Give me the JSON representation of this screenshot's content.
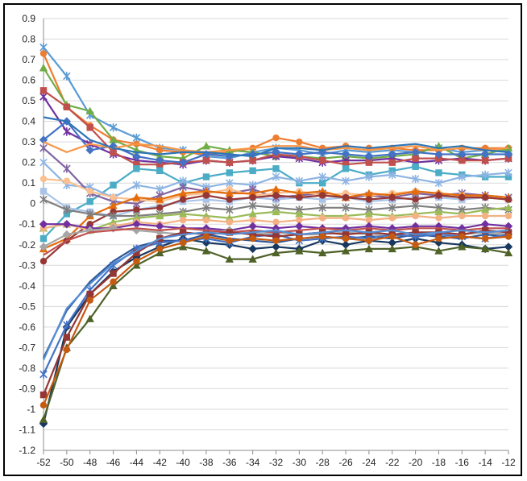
{
  "chart_data": {
    "type": "line",
    "title": "",
    "xlabel": "",
    "ylabel": "",
    "grid": true,
    "legend": "none",
    "xlim": [
      -52,
      -12
    ],
    "ylim": [
      -1.2,
      0.9
    ],
    "x": [
      -52,
      -50,
      -48,
      -46,
      -44,
      -42,
      -40,
      -38,
      -36,
      -34,
      -32,
      -30,
      -28,
      -26,
      -24,
      -22,
      -20,
      -18,
      -16,
      -14,
      -12
    ],
    "x_tick_labels": [
      "-52",
      "-50",
      "-48",
      "-46",
      "-44",
      "-42",
      "-40",
      "-38",
      "-36",
      "-34",
      "-32",
      "-30",
      "-28",
      "-26",
      "-24",
      "-22",
      "-20",
      "-18",
      "-16",
      "-14",
      "-12"
    ],
    "y_ticks": [
      0.9,
      0.8,
      0.7,
      0.6,
      0.5,
      0.4,
      0.3,
      0.2,
      0.1,
      0,
      -0.1,
      -0.2,
      -0.3,
      -0.4,
      -0.5,
      -0.6,
      -0.7,
      -0.8,
      -0.9,
      -1,
      -1.1,
      -1.2
    ],
    "y_tick_labels": [
      "0.9",
      "0.8",
      "0.7",
      "0.6",
      "0.5",
      "0.4",
      "0.3",
      "0.2",
      "0.1",
      "0",
      "-0.1",
      "-0.2",
      "-0.3",
      "-0.4",
      "-0.5",
      "-0.6",
      "-0.7",
      "-0.8",
      "-0.9",
      "-1",
      "-1.1",
      "-1.2"
    ],
    "series": [
      {
        "color": "#5b9bd5",
        "marker": "x",
        "values": [
          0.76,
          0.62,
          0.43,
          0.37,
          0.32,
          0.27,
          0.26,
          0.23,
          0.22,
          0.25,
          0.27,
          0.26,
          0.24,
          0.26,
          0.25,
          0.26,
          0.25,
          0.27,
          0.25,
          0.26,
          0.26
        ]
      },
      {
        "color": "#ed7d31",
        "marker": "circle",
        "values": [
          0.73,
          0.47,
          0.38,
          0.31,
          0.29,
          0.26,
          0.25,
          0.24,
          0.25,
          0.27,
          0.32,
          0.3,
          0.27,
          0.28,
          0.27,
          0.27,
          0.26,
          0.26,
          0.27,
          0.27,
          0.27
        ]
      },
      {
        "color": "#70ad47",
        "marker": "triangle",
        "values": [
          0.66,
          0.48,
          0.45,
          0.31,
          0.26,
          0.23,
          0.22,
          0.28,
          0.26,
          0.25,
          0.23,
          0.23,
          0.22,
          0.23,
          0.22,
          0.23,
          0.24,
          0.28,
          0.22,
          0.24,
          0.27
        ]
      },
      {
        "color": "#7030a0",
        "marker": "x",
        "values": [
          0.52,
          0.35,
          0.29,
          0.24,
          0.21,
          0.2,
          0.19,
          0.21,
          0.2,
          0.21,
          0.23,
          0.22,
          0.2,
          0.21,
          0.21,
          0.22,
          0.2,
          0.21,
          0.22,
          0.21,
          0.22
        ]
      },
      {
        "color": "#c0504d",
        "marker": "square",
        "values": [
          0.55,
          0.47,
          0.37,
          0.25,
          0.19,
          0.19,
          0.2,
          0.21,
          0.2,
          0.21,
          0.24,
          0.23,
          0.21,
          0.19,
          0.2,
          0.2,
          0.22,
          0.22,
          0.21,
          0.21,
          0.22
        ]
      },
      {
        "color": "#4472c4",
        "marker": "diamond",
        "values": [
          0.31,
          0.4,
          0.26,
          0.28,
          0.23,
          0.21,
          0.2,
          0.24,
          0.23,
          0.24,
          0.25,
          0.24,
          0.25,
          0.24,
          0.23,
          0.24,
          0.25,
          0.24,
          0.24,
          0.24,
          0.24
        ]
      },
      {
        "color": "#f79646",
        "marker": "none",
        "values": [
          0.3,
          0.25,
          0.29,
          0.27,
          0.29,
          0.28,
          0.26,
          0.25,
          0.26,
          0.27,
          0.28,
          0.28,
          0.26,
          0.27,
          0.26,
          0.27,
          0.28,
          0.26,
          0.27,
          0.26,
          0.27
        ]
      },
      {
        "color": "#2e75b6",
        "marker": "none",
        "values": [
          0.42,
          0.4,
          0.31,
          0.27,
          0.25,
          0.24,
          0.25,
          0.25,
          0.24,
          0.23,
          0.27,
          0.27,
          0.26,
          0.28,
          0.27,
          0.28,
          0.29,
          0.27,
          0.28,
          0.26,
          0.25
        ]
      },
      {
        "color": "#4bacc6",
        "marker": "square",
        "values": [
          -0.17,
          -0.05,
          0.01,
          0.09,
          0.17,
          0.16,
          0.1,
          0.13,
          0.15,
          0.16,
          0.17,
          0.1,
          0.1,
          0.17,
          0.14,
          0.16,
          0.18,
          0.15,
          0.14,
          0.13,
          0.13
        ]
      },
      {
        "color": "#8eb4e3",
        "marker": "x",
        "values": [
          0.2,
          0.09,
          0.08,
          0.03,
          0.09,
          0.07,
          0.11,
          0.08,
          0.1,
          0.09,
          0.13,
          0.11,
          0.13,
          0.11,
          0.13,
          0.14,
          0.12,
          0.1,
          0.13,
          0.14,
          0.15
        ]
      },
      {
        "color": "#a9c4e8",
        "marker": "square",
        "values": [
          0.06,
          -0.02,
          -0.04,
          -0.06,
          -0.03,
          -0.01,
          0.01,
          0.02,
          0.01,
          0.03,
          0.02,
          0.03,
          0.02,
          0.03,
          0.01,
          0.02,
          0.03,
          0.03,
          0.02,
          0.03,
          0.02
        ]
      },
      {
        "color": "#8064a2",
        "marker": "x",
        "values": [
          0.27,
          0.17,
          0.05,
          0.01,
          0.0,
          0.04,
          0.08,
          0.06,
          0.05,
          0.07,
          0.03,
          0.04,
          0.05,
          0.03,
          0.04,
          0.03,
          0.05,
          0.04,
          0.05,
          0.04,
          0.03
        ]
      },
      {
        "color": "#fac090",
        "marker": "circle",
        "values": [
          0.12,
          0.11,
          0.06,
          0.03,
          0.02,
          0.01,
          0.04,
          0.05,
          0.07,
          0.04,
          0.05,
          0.06,
          0.04,
          0.05,
          0.04,
          0.05,
          0.06,
          0.05,
          0.04,
          0.03,
          0.02
        ]
      },
      {
        "color": "#e46c0a",
        "marker": "triangle",
        "values": [
          -0.22,
          -0.17,
          -0.06,
          -0.01,
          0.03,
          0.02,
          0.05,
          0.06,
          0.05,
          0.05,
          0.07,
          0.05,
          0.06,
          0.03,
          0.05,
          0.04,
          0.06,
          0.05,
          0.04,
          0.04,
          0.03
        ]
      },
      {
        "color": "#953735",
        "marker": "circle",
        "values": [
          -0.28,
          -0.18,
          -0.1,
          -0.04,
          -0.03,
          -0.02,
          0.02,
          0.04,
          0.02,
          0.03,
          0.04,
          0.03,
          0.04,
          0.03,
          0.02,
          0.03,
          0.02,
          0.04,
          0.03,
          0.03,
          0.02
        ]
      },
      {
        "color": "#7f7f7f",
        "marker": "x",
        "values": [
          0.02,
          -0.03,
          -0.05,
          -0.06,
          -0.06,
          -0.05,
          -0.04,
          -0.02,
          -0.03,
          -0.01,
          -0.02,
          -0.03,
          -0.02,
          -0.02,
          -0.03,
          -0.02,
          -0.01,
          -0.02,
          -0.03,
          -0.02,
          -0.03
        ]
      },
      {
        "color": "#9bbb59",
        "marker": "triangle",
        "values": [
          -0.12,
          -0.1,
          -0.13,
          -0.09,
          -0.07,
          -0.06,
          -0.05,
          -0.06,
          -0.07,
          -0.05,
          -0.04,
          -0.05,
          -0.06,
          -0.06,
          -0.05,
          -0.06,
          -0.05,
          -0.04,
          -0.05,
          -0.03,
          -0.02
        ]
      },
      {
        "color": "#f4b183",
        "marker": "circle",
        "values": [
          -0.12,
          -0.1,
          -0.13,
          -0.11,
          -0.09,
          -0.1,
          -0.08,
          -0.08,
          -0.09,
          -0.08,
          -0.09,
          -0.08,
          -0.07,
          -0.07,
          -0.08,
          -0.07,
          -0.06,
          -0.07,
          -0.06,
          -0.06,
          -0.06
        ]
      },
      {
        "color": "#7030a0",
        "marker": "diamond",
        "values": [
          -0.1,
          -0.1,
          -0.12,
          -0.12,
          -0.1,
          -0.11,
          -0.12,
          -0.12,
          -0.13,
          -0.11,
          -0.12,
          -0.11,
          -0.12,
          -0.12,
          -0.11,
          -0.12,
          -0.11,
          -0.11,
          -0.12,
          -0.1,
          -0.11
        ]
      },
      {
        "color": "#a6a6a6",
        "marker": "diamond",
        "values": [
          -0.21,
          -0.15,
          -0.13,
          -0.12,
          -0.13,
          -0.14,
          -0.15,
          -0.14,
          -0.13,
          -0.15,
          -0.14,
          -0.15,
          -0.15,
          -0.14,
          -0.15,
          -0.16,
          -0.15,
          -0.14,
          -0.15,
          -0.14,
          -0.15
        ]
      },
      {
        "color": "#c0504d",
        "marker": "none",
        "values": [
          -0.25,
          -0.18,
          -0.14,
          -0.13,
          -0.12,
          -0.13,
          -0.12,
          -0.13,
          -0.14,
          -0.13,
          -0.14,
          -0.13,
          -0.12,
          -0.13,
          -0.12,
          -0.13,
          -0.12,
          -0.12,
          -0.13,
          -0.12,
          -0.12
        ]
      },
      {
        "color": "#17375e",
        "marker": "diamond",
        "values": [
          -1.07,
          -0.6,
          -0.44,
          -0.33,
          -0.26,
          -0.21,
          -0.17,
          -0.19,
          -0.2,
          -0.22,
          -0.21,
          -0.22,
          -0.18,
          -0.2,
          -0.18,
          -0.19,
          -0.17,
          -0.19,
          -0.2,
          -0.22,
          -0.21
        ]
      },
      {
        "color": "#4f6228",
        "marker": "triangle",
        "values": [
          -1.05,
          -0.7,
          -0.56,
          -0.4,
          -0.3,
          -0.24,
          -0.21,
          -0.23,
          -0.27,
          -0.27,
          -0.24,
          -0.23,
          -0.24,
          -0.23,
          -0.22,
          -0.22,
          -0.21,
          -0.23,
          -0.21,
          -0.22,
          -0.24
        ]
      },
      {
        "color": "#2f5597",
        "marker": "none",
        "values": [
          -0.75,
          -0.52,
          -0.38,
          -0.28,
          -0.21,
          -0.18,
          -0.18,
          -0.15,
          -0.17,
          -0.18,
          -0.19,
          -0.17,
          -0.16,
          -0.17,
          -0.16,
          -0.17,
          -0.15,
          -0.16,
          -0.17,
          -0.15,
          -0.16
        ]
      },
      {
        "color": "#4472c4",
        "marker": "x",
        "values": [
          -0.83,
          -0.59,
          -0.42,
          -0.3,
          -0.22,
          -0.19,
          -0.18,
          -0.17,
          -0.19,
          -0.16,
          -0.15,
          -0.18,
          -0.17,
          -0.16,
          -0.17,
          -0.15,
          -0.16,
          -0.15,
          -0.16,
          -0.17,
          -0.15
        ]
      },
      {
        "color": "#943634",
        "marker": "square",
        "values": [
          -0.93,
          -0.65,
          -0.44,
          -0.34,
          -0.24,
          -0.17,
          -0.14,
          -0.15,
          -0.14,
          -0.15,
          -0.16,
          -0.15,
          -0.14,
          -0.15,
          -0.14,
          -0.15,
          -0.14,
          -0.14,
          -0.15,
          -0.13,
          -0.14
        ]
      },
      {
        "color": "#c55a11",
        "marker": "circle",
        "values": [
          -0.98,
          -0.71,
          -0.47,
          -0.38,
          -0.28,
          -0.22,
          -0.19,
          -0.16,
          -0.18,
          -0.17,
          -0.18,
          -0.17,
          -0.16,
          -0.17,
          -0.18,
          -0.16,
          -0.2,
          -0.17,
          -0.16,
          -0.17,
          -0.16
        ]
      },
      {
        "color": "#558ed5",
        "marker": "none",
        "values": [
          -0.76,
          -0.51,
          -0.39,
          -0.29,
          -0.23,
          -0.17,
          -0.15,
          -0.14,
          -0.15,
          -0.14,
          -0.13,
          -0.15,
          -0.14,
          -0.13,
          -0.14,
          -0.13,
          -0.15,
          -0.14,
          -0.13,
          -0.14,
          -0.13
        ]
      }
    ]
  }
}
